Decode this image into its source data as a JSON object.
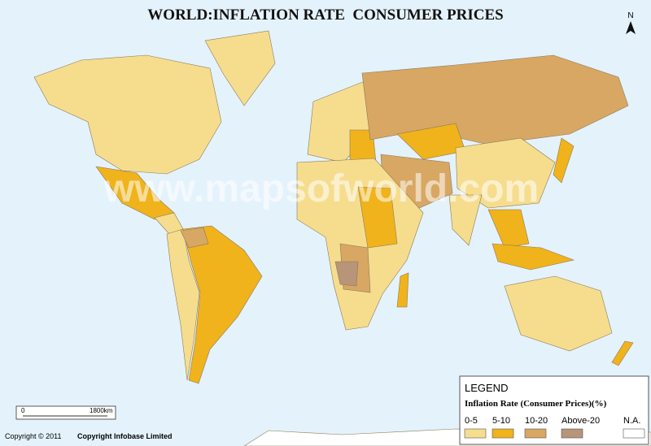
{
  "title": "WORLD:INFLATION RATE  CONSUMER PRICES",
  "north": "N",
  "watermark": "www.mapsofworld.com",
  "scale": {
    "start": "0",
    "end": "1800km"
  },
  "copyright": {
    "year": "Copyright © 2011",
    "holder": "Copyright Infobase Limited"
  },
  "legend": {
    "title": "LEGEND",
    "subtitle": "Inflation Rate (Consumer Prices)(%)",
    "items": [
      {
        "label": "0-5",
        "color": "#f6dd8e"
      },
      {
        "label": "5-10",
        "color": "#f0b31c"
      },
      {
        "label": "10-20",
        "color": "#d8a763"
      },
      {
        "label": "Above-20",
        "color": "#b89478"
      },
      {
        "label": "N.A.",
        "color": "#ffffff"
      }
    ]
  }
}
